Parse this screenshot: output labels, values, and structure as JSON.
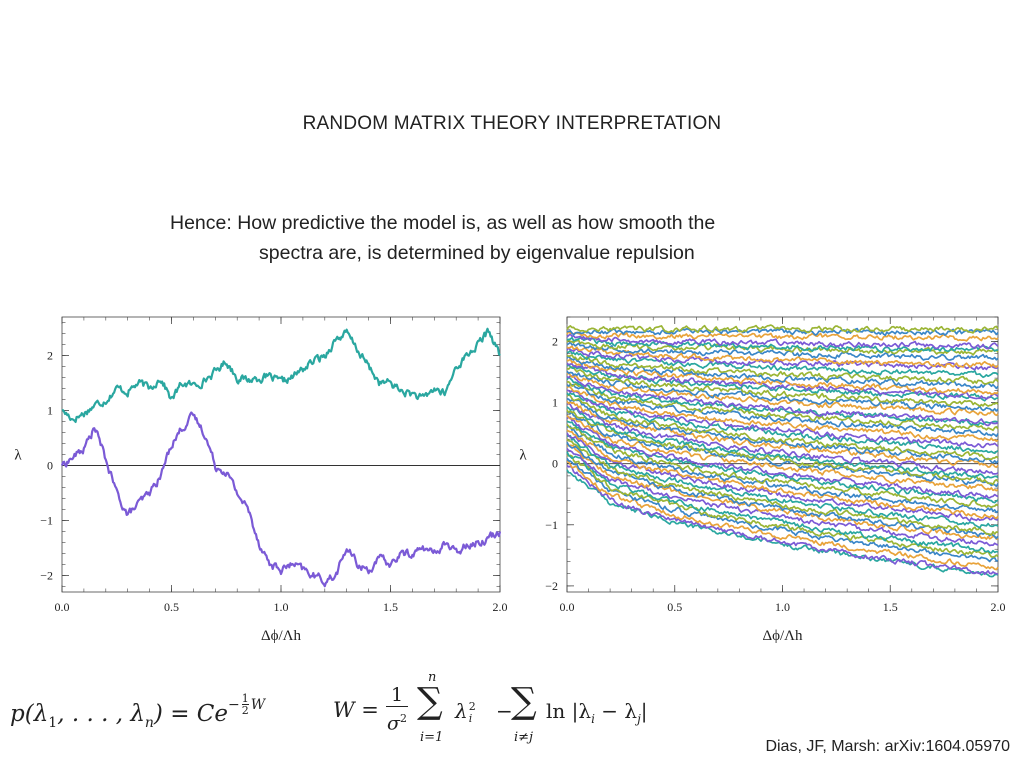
{
  "slide": {
    "title": "RANDOM MATRIX THEORY INTERPRETATION",
    "subtitle_line1": "Hence: How predictive the model is, as well as how smooth the",
    "subtitle_line2": "spectra are, is determined by eigenvalue repulsion",
    "credit": "Dias, JF, Marsh: arXiv:1604.05970"
  },
  "formula": {
    "p_lhs": "p(λ",
    "p_sub1": "1",
    "p_mid": ", . . . , λ",
    "p_subn": "n",
    "p_eq": ") = Ce",
    "p_exp_minus": "−",
    "p_exp_num": "1",
    "p_exp_den": "2",
    "p_exp_var": "W",
    "w_lhs": "W =",
    "frac_num": "1",
    "frac_den": "σ",
    "frac_den_sup": "2",
    "sum1_upper": "n",
    "sum1_lower": "i=1",
    "lambda_i": "λ",
    "lambda_sub": "i",
    "lambda_sup": "2",
    "minus": "−",
    "sum2_lower": "i≠j",
    "ln_term": "ln |λ",
    "ln_sub_i": "i",
    "ln_minus": " − λ",
    "ln_sub_j": "j",
    "ln_close": "|"
  },
  "chart_data": [
    {
      "type": "line",
      "xlabel": "Δϕ/Λh",
      "ylabel": "λ",
      "xlim": [
        0,
        2
      ],
      "ylim": [
        -2.3,
        2.7
      ],
      "x_ticks": [
        "0.0",
        "0.5",
        "1.0",
        "1.5",
        "2.0"
      ],
      "y_ticks": [
        "−2",
        "−1",
        "0",
        "1",
        "2"
      ],
      "zero_line": true,
      "series": [
        {
          "color": "#2aa7a0",
          "x": [
            0,
            0.05,
            0.1,
            0.15,
            0.2,
            0.25,
            0.3,
            0.35,
            0.4,
            0.45,
            0.5,
            0.55,
            0.6,
            0.65,
            0.7,
            0.75,
            0.8,
            0.85,
            0.9,
            0.95,
            1.0,
            1.05,
            1.1,
            1.15,
            1.2,
            1.25,
            1.3,
            1.35,
            1.4,
            1.45,
            1.5,
            1.55,
            1.6,
            1.65,
            1.7,
            1.75,
            1.8,
            1.85,
            1.9,
            1.95,
            2.0
          ],
          "values": [
            1.0,
            0.85,
            0.95,
            1.1,
            1.2,
            1.4,
            1.35,
            1.5,
            1.4,
            1.6,
            1.2,
            1.5,
            1.45,
            1.55,
            1.7,
            1.9,
            1.6,
            1.55,
            1.6,
            1.6,
            1.5,
            1.6,
            1.75,
            1.9,
            2.0,
            2.3,
            2.4,
            2.1,
            1.8,
            1.5,
            1.5,
            1.35,
            1.3,
            1.2,
            1.4,
            1.3,
            1.8,
            2.0,
            2.2,
            2.45,
            2.0
          ]
        },
        {
          "color": "#7b5ad6",
          "x": [
            0,
            0.05,
            0.1,
            0.15,
            0.2,
            0.25,
            0.3,
            0.35,
            0.4,
            0.45,
            0.5,
            0.55,
            0.6,
            0.65,
            0.7,
            0.75,
            0.8,
            0.85,
            0.9,
            0.95,
            1.0,
            1.05,
            1.1,
            1.15,
            1.2,
            1.25,
            1.3,
            1.35,
            1.4,
            1.45,
            1.5,
            1.55,
            1.6,
            1.65,
            1.7,
            1.75,
            1.8,
            1.85,
            1.9,
            1.95,
            2.0
          ],
          "values": [
            0.0,
            0.15,
            0.3,
            0.7,
            0.1,
            -0.5,
            -0.9,
            -0.7,
            -0.5,
            -0.2,
            0.4,
            0.7,
            0.9,
            0.6,
            0.0,
            -0.1,
            -0.5,
            -0.8,
            -1.4,
            -1.8,
            -1.9,
            -1.8,
            -1.9,
            -2.0,
            -2.1,
            -2.0,
            -1.5,
            -1.8,
            -1.9,
            -1.7,
            -1.8,
            -1.6,
            -1.6,
            -1.5,
            -1.6,
            -1.4,
            -1.6,
            -1.4,
            -1.4,
            -1.3,
            -1.2
          ]
        }
      ]
    },
    {
      "type": "line",
      "xlabel": "Δϕ/Λh",
      "ylabel": "λ",
      "xlim": [
        0,
        2
      ],
      "ylim": [
        -2.1,
        2.4
      ],
      "x_ticks": [
        "0.0",
        "0.5",
        "1.0",
        "1.5",
        "2.0"
      ],
      "y_ticks": [
        "−2",
        "−1",
        "0",
        "1",
        "2"
      ],
      "zero_line": true,
      "ensemble": {
        "count": 50,
        "start_range": [
          -0.1,
          2.2
        ],
        "end_range": [
          -1.85,
          2.2
        ],
        "colors": [
          "#2aa7a0",
          "#7b5ad6",
          "#e8a33a",
          "#3a86c8",
          "#9bb535"
        ]
      }
    }
  ]
}
